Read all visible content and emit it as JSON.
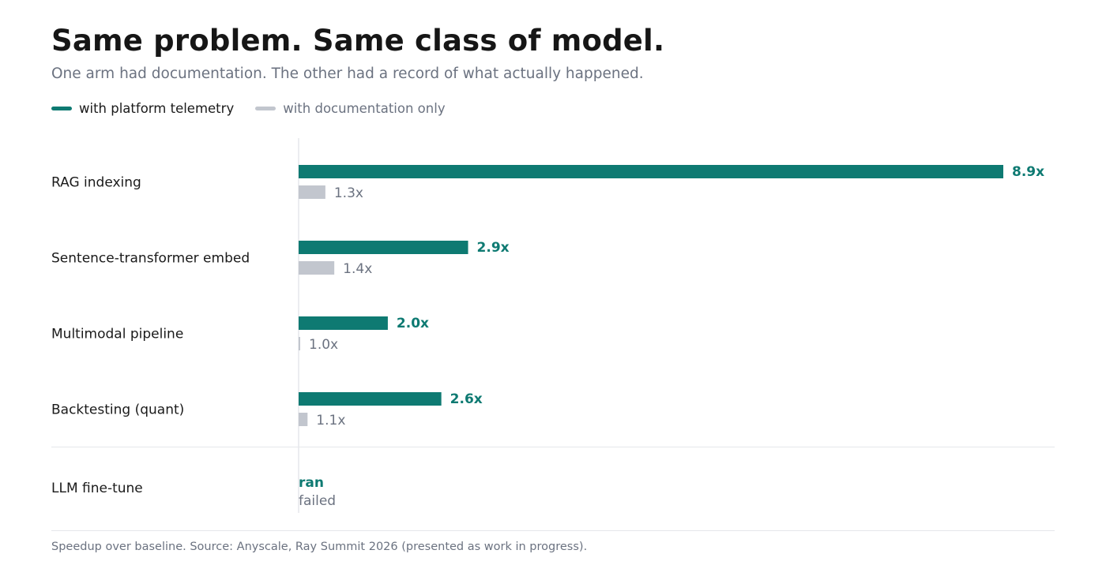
{
  "title": "Same problem. Same class of model.",
  "subtitle": "One arm had documentation. The other had a record of what actually happened.",
  "footnote": "Speedup over baseline. Source: Anyscale, Ray Summit 2026 (presented as work in progress).",
  "colors": {
    "telemetry": "#0e7a72",
    "docs": "#c2c6ce",
    "category_text": "#1a1a1a",
    "docs_text": "#6b7280",
    "axis": "#d9dbe0",
    "divider": "#e5e7eb"
  },
  "legend": [
    {
      "name": "with platform telemetry",
      "color": "#0e7a72"
    },
    {
      "name": "with documentation only",
      "color": "#c2c6ce"
    }
  ],
  "chart_data": {
    "type": "bar",
    "orientation": "horizontal",
    "categories": [
      "RAG indexing",
      "Sentence-transformer embed",
      "Multimodal pipeline",
      "Backtesting (quant)"
    ],
    "series": [
      {
        "name": "with platform telemetry",
        "values": [
          8.9,
          2.9,
          2.0,
          2.6
        ],
        "labels": [
          "8.9x",
          "2.9x",
          "2.0x",
          "2.6x"
        ]
      },
      {
        "name": "with documentation only",
        "values": [
          1.3,
          1.4,
          1.0,
          1.1
        ],
        "labels": [
          "1.3x",
          "1.4x",
          "1.0x",
          "1.1x"
        ]
      }
    ],
    "baseline": 1.0,
    "xlim": [
      1.0,
      8.9
    ],
    "grid": false,
    "legend_position": "top-left",
    "extra_row": {
      "category": "LLM fine-tune",
      "telemetry_label": "ran",
      "docs_label": "failed"
    }
  }
}
